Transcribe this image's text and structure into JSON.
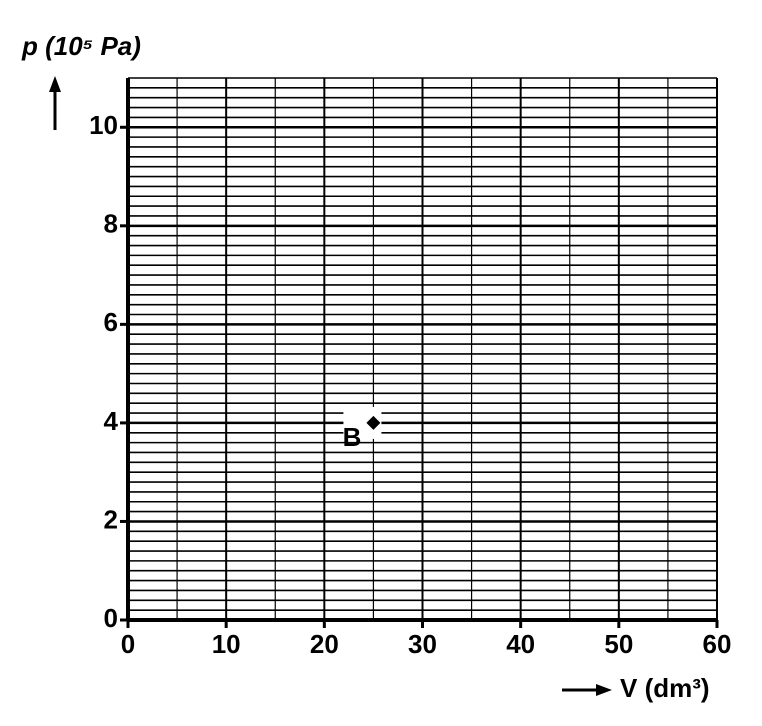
{
  "chart_data": {
    "type": "scatter",
    "y_label": "p (10⁵ Pa)",
    "x_label": "V (dm³)",
    "x": [
      25
    ],
    "values": [
      4
    ],
    "point_labels": [
      "B"
    ],
    "color": "#000000",
    "xlim": [
      0,
      60
    ],
    "xticks": [
      0,
      10,
      20,
      30,
      40,
      50,
      60
    ],
    "ylim": [
      0,
      11
    ],
    "yticks": [
      0,
      2,
      4,
      6,
      8,
      10
    ],
    "grid": true
  }
}
